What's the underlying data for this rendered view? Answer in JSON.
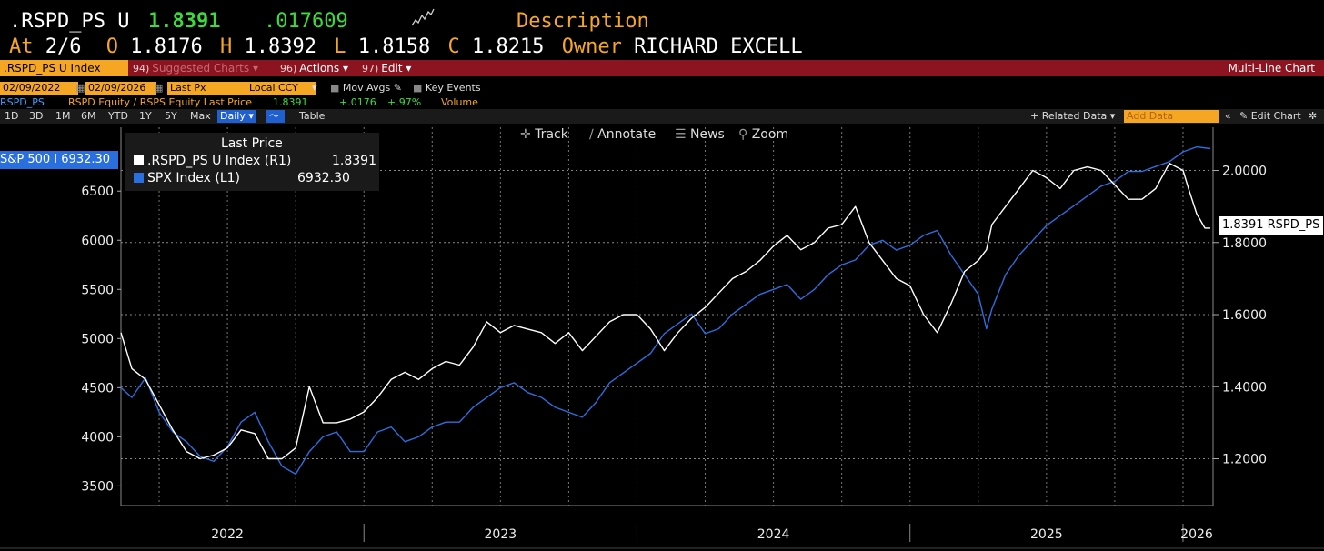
{
  "header": {
    "ticker": ".RSPD_PS U",
    "last": "1.8391",
    "change": ".017609",
    "description_label": "Description",
    "at_label": "At",
    "date": "2/6",
    "o_label": "O",
    "open": "1.8176",
    "h_label": "H",
    "high": "1.8392",
    "l_label": "L",
    "low": "1.8158",
    "c_label": "C",
    "close": "1.8215",
    "owner_label": "Owner",
    "owner": "RICHARD EXCELL"
  },
  "redbar": {
    "security": ".RSPD_PS U Index",
    "suggested_num": "94)",
    "suggested": "Suggested Charts",
    "actions_num": "96)",
    "actions": "Actions",
    "edit_num": "97)",
    "edit": "Edit",
    "chart_type": "Multi-Line Chart"
  },
  "settings": {
    "start_date": "02/09/2022",
    "end_date": "02/09/2026",
    "field": "Last Px",
    "currency": "Local CCY",
    "mov_avgs": "Mov Avgs",
    "key_events": "Key Events"
  },
  "info": {
    "ticker": "RSPD_PS",
    "formula": "RSPD Equity / RSPS Equity Last Price",
    "price": "1.8391",
    "change": "+.0176",
    "pct": "+.97%",
    "volume": "Volume"
  },
  "toolbar": {
    "ranges": [
      "1D",
      "3D",
      "1M",
      "6M",
      "YTD",
      "1Y",
      "5Y",
      "Max"
    ],
    "period": "Daily",
    "table": "Table",
    "related": "+ Related Data",
    "add_data": "Add Data",
    "edit_chart": "Edit Chart"
  },
  "tools": {
    "track": "Track",
    "annotate": "Annotate",
    "news": "News",
    "zoom": "Zoom"
  },
  "legend": {
    "title": "Last Price",
    "s1_name": ".RSPD_PS U Index  (R1)",
    "s1_value": "1.8391",
    "s2_name": "SPX Index  (L1)",
    "s2_value": "6932.30"
  },
  "flags": {
    "left": "S&P 500 I 6932.30",
    "right": "1.8391 RSPD_PS"
  },
  "colors": {
    "spx": "#2a6fe0",
    "ratio": "#ffffff",
    "accent": "#f5a623",
    "brand_red": "#8b1420"
  },
  "chart_data": {
    "type": "line",
    "x_range": [
      "2022-02-09",
      "2026-02-09"
    ],
    "x_ticks": [
      "2022",
      "2023",
      "2024",
      "2025",
      "2026"
    ],
    "left_axis": {
      "ticks": [
        "3500",
        "4000",
        "4500",
        "5000",
        "5500",
        "6000",
        "6500"
      ],
      "ylim": [
        3300,
        7150
      ]
    },
    "right_axis": {
      "ticks": [
        "1.2000",
        "1.4000",
        "1.6000",
        "1.8000",
        "2.0000"
      ],
      "ylim": [
        1.07,
        2.12
      ]
    },
    "grid": true,
    "series": [
      {
        "name": "SPX Index",
        "axis": "left",
        "color": "#2a6fe0",
        "x": [
          2022.11,
          2022.15,
          2022.2,
          2022.25,
          2022.3,
          2022.35,
          2022.4,
          2022.45,
          2022.5,
          2022.55,
          2022.6,
          2022.65,
          2022.7,
          2022.75,
          2022.8,
          2022.85,
          2022.9,
          2022.95,
          2023.0,
          2023.05,
          2023.1,
          2023.15,
          2023.2,
          2023.25,
          2023.3,
          2023.35,
          2023.4,
          2023.45,
          2023.5,
          2023.55,
          2023.6,
          2023.65,
          2023.7,
          2023.75,
          2023.8,
          2023.85,
          2023.9,
          2023.95,
          2024.0,
          2024.05,
          2024.1,
          2024.15,
          2024.2,
          2024.25,
          2024.3,
          2024.35,
          2024.4,
          2024.45,
          2024.5,
          2024.55,
          2024.6,
          2024.65,
          2024.7,
          2024.75,
          2024.8,
          2024.85,
          2024.9,
          2024.95,
          2025.0,
          2025.05,
          2025.1,
          2025.15,
          2025.2,
          2025.25,
          2025.28,
          2025.3,
          2025.35,
          2025.4,
          2025.45,
          2025.5,
          2025.55,
          2025.6,
          2025.65,
          2025.7,
          2025.75,
          2025.8,
          2025.85,
          2025.9,
          2025.95,
          2026.0,
          2026.05,
          2026.1
        ],
        "values": [
          4500,
          4400,
          4600,
          4250,
          4050,
          3950,
          3800,
          3750,
          3900,
          4150,
          4250,
          3950,
          3700,
          3620,
          3850,
          4000,
          4050,
          3850,
          3850,
          4050,
          4100,
          3950,
          4000,
          4100,
          4150,
          4150,
          4300,
          4400,
          4500,
          4550,
          4450,
          4400,
          4300,
          4250,
          4200,
          4350,
          4550,
          4650,
          4750,
          4850,
          5050,
          5150,
          5250,
          5050,
          5100,
          5250,
          5350,
          5450,
          5500,
          5550,
          5400,
          5500,
          5650,
          5750,
          5800,
          5950,
          6000,
          5900,
          5950,
          6050,
          6100,
          5850,
          5650,
          5450,
          5100,
          5300,
          5650,
          5850,
          6000,
          6150,
          6250,
          6350,
          6450,
          6550,
          6600,
          6700,
          6700,
          6750,
          6800,
          6900,
          6950,
          6932.3
        ]
      },
      {
        "name": ".RSPD_PS U Index",
        "axis": "right",
        "color": "#ffffff",
        "x": [
          2022.11,
          2022.15,
          2022.2,
          2022.25,
          2022.3,
          2022.35,
          2022.4,
          2022.45,
          2022.5,
          2022.55,
          2022.6,
          2022.65,
          2022.7,
          2022.75,
          2022.8,
          2022.85,
          2022.9,
          2022.95,
          2023.0,
          2023.05,
          2023.1,
          2023.15,
          2023.2,
          2023.25,
          2023.3,
          2023.35,
          2023.4,
          2023.45,
          2023.5,
          2023.55,
          2023.6,
          2023.65,
          2023.7,
          2023.75,
          2023.8,
          2023.85,
          2023.9,
          2023.95,
          2024.0,
          2024.05,
          2024.1,
          2024.15,
          2024.2,
          2024.25,
          2024.3,
          2024.35,
          2024.4,
          2024.45,
          2024.5,
          2024.55,
          2024.6,
          2024.65,
          2024.7,
          2024.75,
          2024.8,
          2024.85,
          2024.9,
          2024.95,
          2025.0,
          2025.05,
          2025.1,
          2025.15,
          2025.2,
          2025.25,
          2025.28,
          2025.3,
          2025.35,
          2025.4,
          2025.45,
          2025.5,
          2025.55,
          2025.6,
          2025.65,
          2025.7,
          2025.75,
          2025.8,
          2025.85,
          2025.9,
          2025.95,
          2026.0,
          2026.02,
          2026.05,
          2026.08,
          2026.1
        ],
        "values": [
          1.55,
          1.45,
          1.42,
          1.35,
          1.28,
          1.22,
          1.2,
          1.21,
          1.23,
          1.28,
          1.27,
          1.2,
          1.2,
          1.23,
          1.4,
          1.3,
          1.3,
          1.31,
          1.33,
          1.37,
          1.42,
          1.44,
          1.42,
          1.45,
          1.47,
          1.46,
          1.51,
          1.58,
          1.55,
          1.57,
          1.56,
          1.55,
          1.52,
          1.55,
          1.5,
          1.54,
          1.58,
          1.6,
          1.6,
          1.56,
          1.5,
          1.55,
          1.59,
          1.62,
          1.66,
          1.7,
          1.72,
          1.75,
          1.79,
          1.82,
          1.78,
          1.8,
          1.84,
          1.85,
          1.9,
          1.8,
          1.75,
          1.7,
          1.68,
          1.6,
          1.55,
          1.63,
          1.72,
          1.75,
          1.78,
          1.85,
          1.9,
          1.95,
          2.0,
          1.98,
          1.95,
          2.0,
          2.01,
          2.0,
          1.96,
          1.92,
          1.92,
          1.95,
          2.02,
          2.0,
          1.95,
          1.88,
          1.84,
          1.84
        ]
      }
    ]
  }
}
